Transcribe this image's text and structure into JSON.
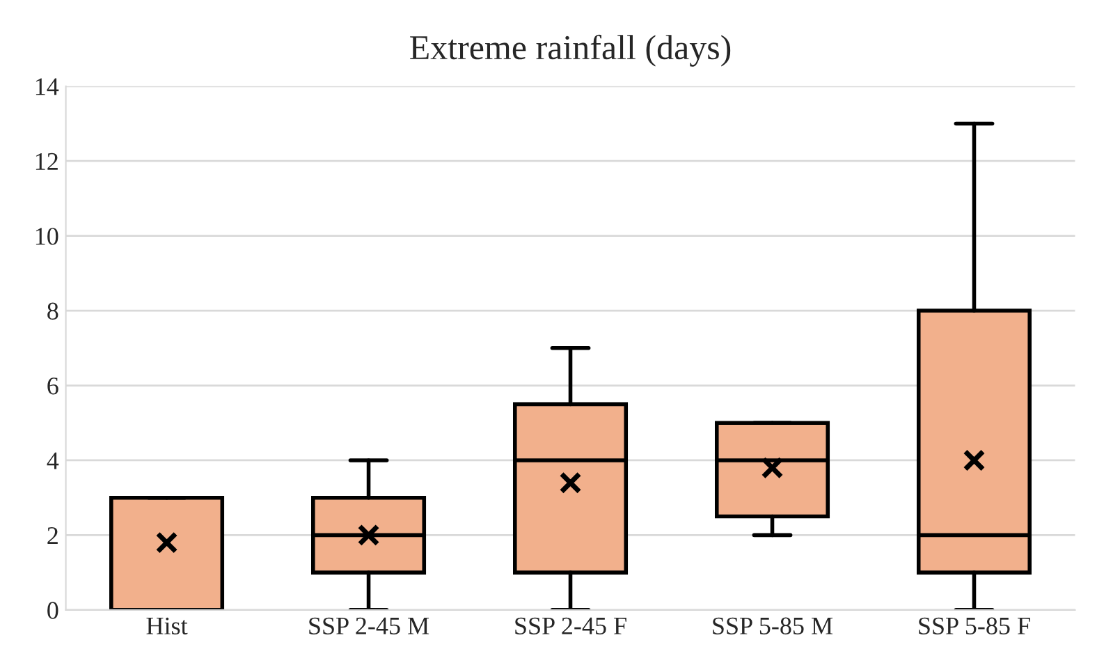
{
  "chart_data": {
    "type": "box",
    "title": "Extreme rainfall (days)",
    "categories": [
      "Hist",
      "SSP 2-45 M",
      "SSP 2-45 F",
      "SSP 5-85 M",
      "SSP 5-85 F"
    ],
    "series": [
      {
        "color": "#f2b08c",
        "boxes": [
          {
            "low": 0,
            "q1": 0,
            "median": 0,
            "q3": 3,
            "high": 3,
            "mean": 1.8
          },
          {
            "low": 0,
            "q1": 1,
            "median": 2,
            "q3": 3,
            "high": 4,
            "mean": 2.0
          },
          {
            "low": 0,
            "q1": 1,
            "median": 4,
            "q3": 5.5,
            "high": 7,
            "mean": 3.4
          },
          {
            "low": 2,
            "q1": 2.5,
            "median": 4,
            "q3": 5,
            "high": 5,
            "mean": 3.8
          },
          {
            "low": 0,
            "q1": 1,
            "median": 2,
            "q3": 8,
            "high": 13,
            "mean": 4.0
          }
        ]
      }
    ],
    "ylim": [
      0,
      14
    ],
    "yticks": [
      0,
      2,
      4,
      6,
      8,
      10,
      12,
      14
    ],
    "grid": "y",
    "marker": "cross"
  }
}
